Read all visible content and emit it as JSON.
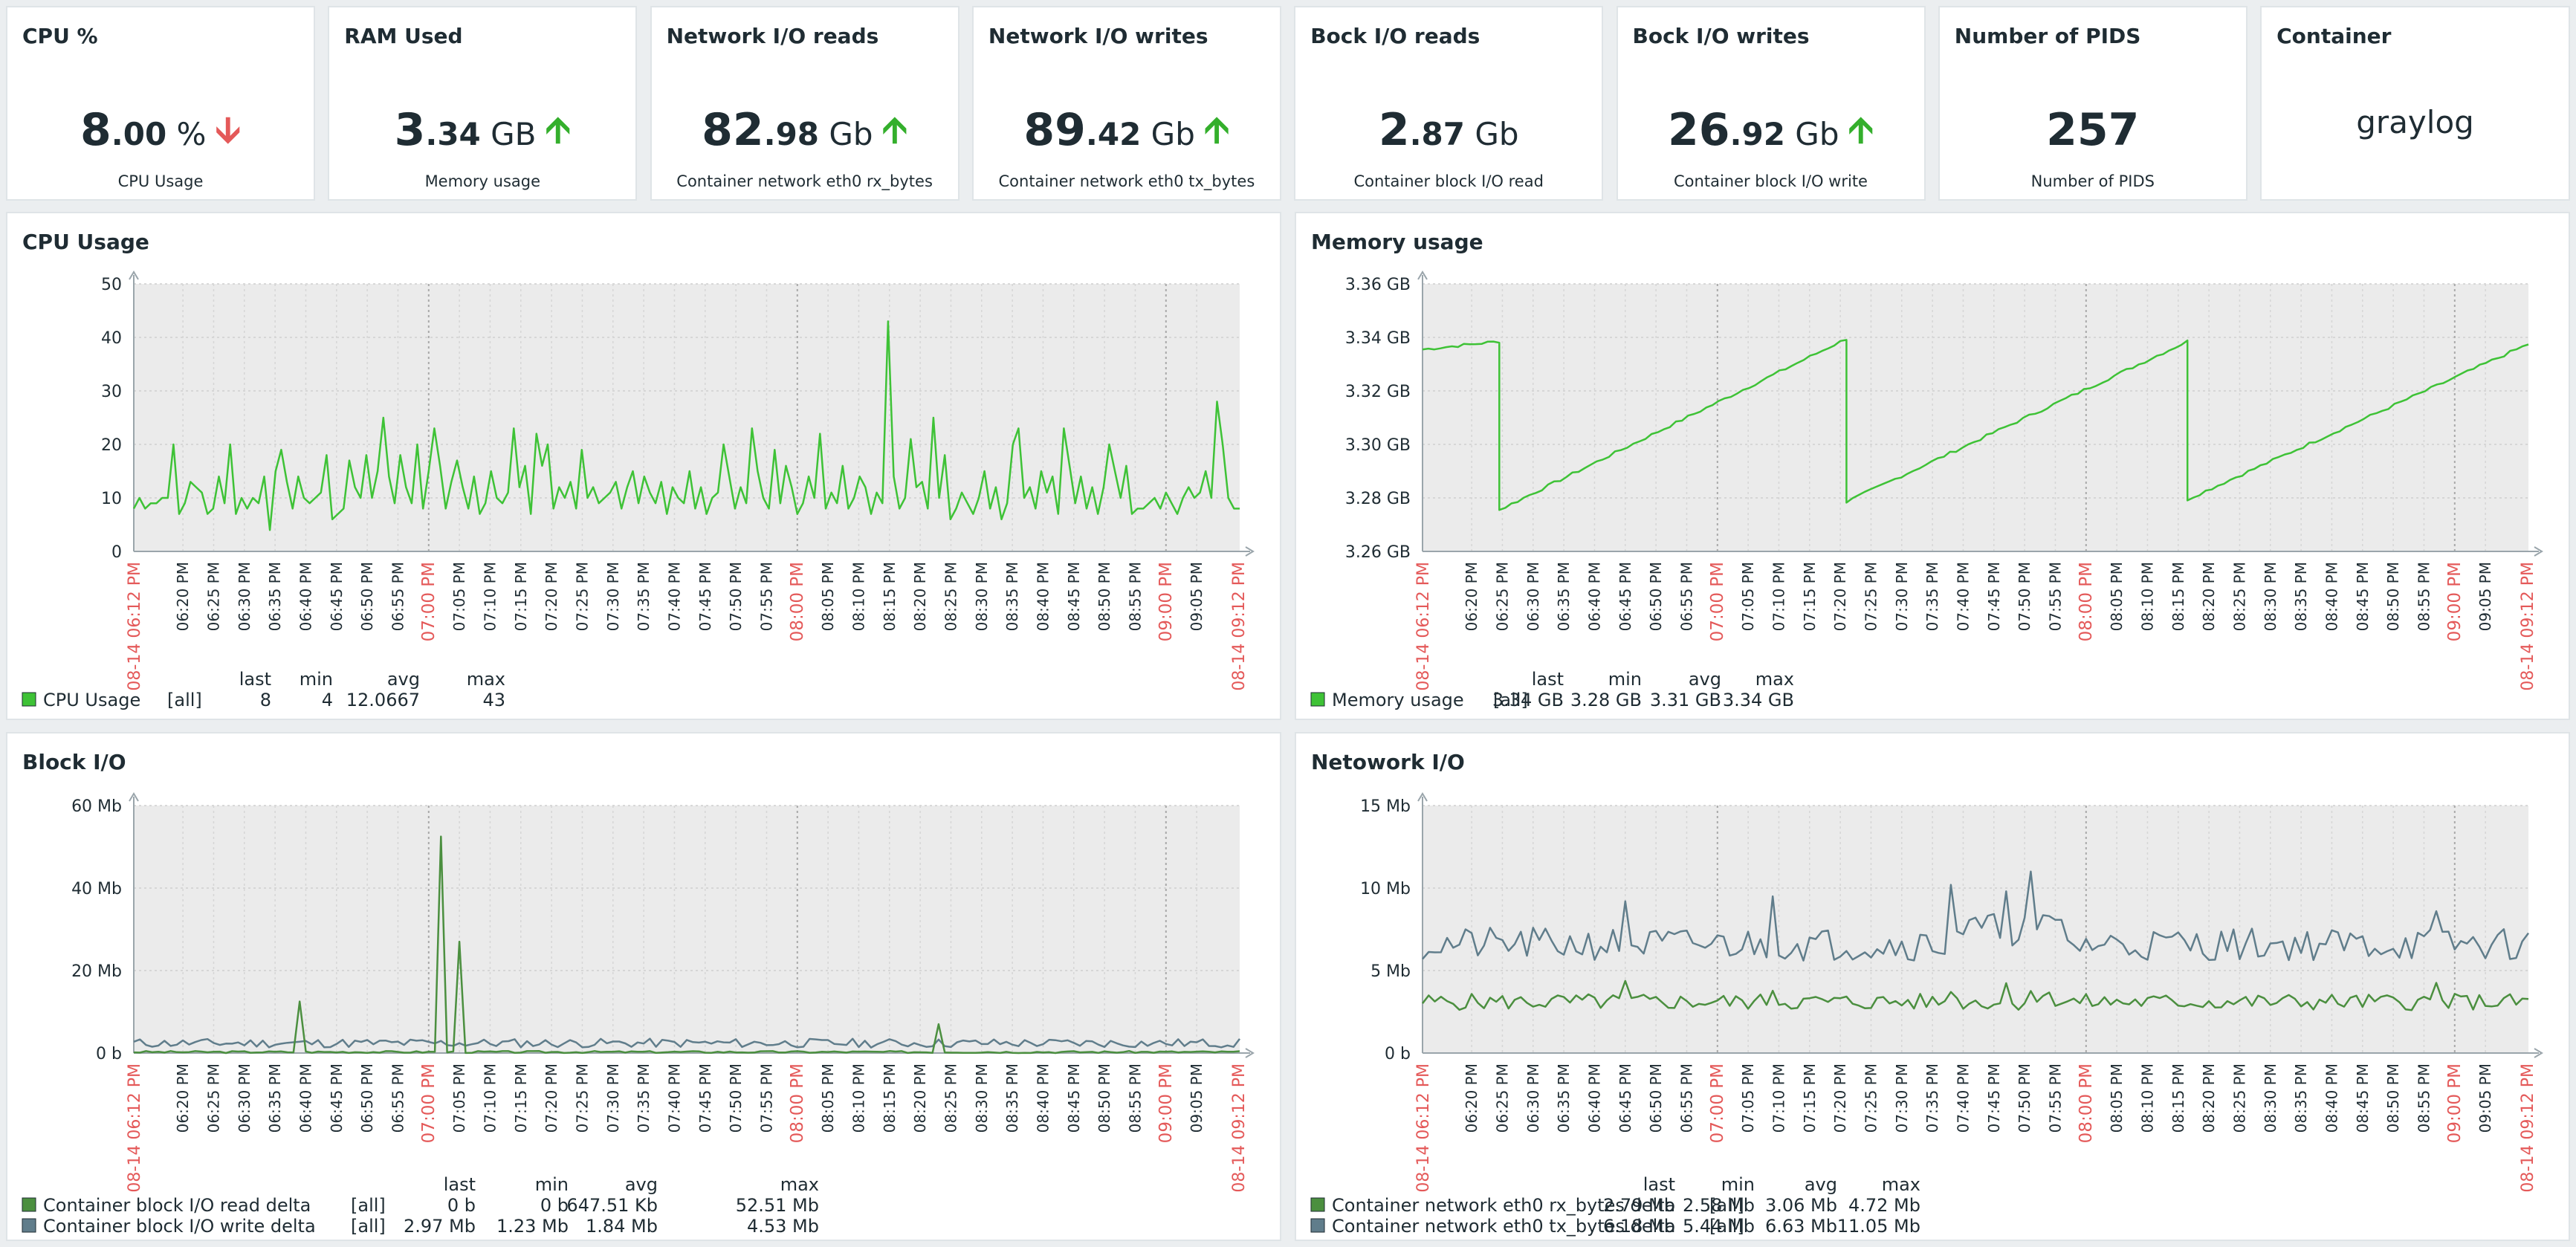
{
  "widgets": [
    {
      "title": "CPU %",
      "big": "8",
      "dec": ".00",
      "unit": " %",
      "arrow": "down",
      "desc": "CPU Usage"
    },
    {
      "title": "RAM Used",
      "big": "3",
      "dec": ".34",
      "unit": " GB",
      "arrow": "up",
      "desc": "Memory usage"
    },
    {
      "title": "Network I/O reads",
      "big": "82",
      "dec": ".98",
      "unit": " Gb",
      "arrow": "up",
      "desc": "Container network eth0 rx_bytes"
    },
    {
      "title": "Network I/O writes",
      "big": "89",
      "dec": ".42",
      "unit": " Gb",
      "arrow": "up",
      "desc": "Container network eth0 tx_bytes"
    },
    {
      "title": "Bock I/O reads",
      "big": "2",
      "dec": ".87",
      "unit": " Gb",
      "arrow": "",
      "desc": "Container block I/O read"
    },
    {
      "title": "Bock I/O writes",
      "big": "26",
      "dec": ".92",
      "unit": " Gb",
      "arrow": "up",
      "desc": "Container block I/O write"
    },
    {
      "title": "Number of PIDS",
      "big": "257",
      "dec": "",
      "unit": "",
      "arrow": "",
      "desc": "Number of PIDS"
    },
    {
      "title": "Container",
      "plain": "graylog",
      "desc": ""
    }
  ],
  "colors": {
    "green": "#3ec236",
    "dark_green": "#4b8f3f",
    "slate": "#607d8b",
    "red_label": "#e45959",
    "arrow_up": "#34af2c",
    "arrow_down": "#e45959"
  },
  "time_axis": {
    "start_label": "08-14 06:12 PM",
    "end_label": "08-14 09:12 PM",
    "tick_labels": [
      "06:20 PM",
      "06:25 PM",
      "06:30 PM",
      "06:35 PM",
      "06:40 PM",
      "06:45 PM",
      "06:50 PM",
      "06:55 PM",
      "07:00 PM",
      "07:05 PM",
      "07:10 PM",
      "07:15 PM",
      "07:20 PM",
      "07:25 PM",
      "07:30 PM",
      "07:35 PM",
      "07:40 PM",
      "07:45 PM",
      "07:50 PM",
      "07:55 PM",
      "08:00 PM",
      "08:05 PM",
      "08:10 PM",
      "08:15 PM",
      "08:20 PM",
      "08:25 PM",
      "08:30 PM",
      "08:35 PM",
      "08:40 PM",
      "08:45 PM",
      "08:50 PM",
      "08:55 PM",
      "09:00 PM",
      "09:05 PM"
    ],
    "hour_marks": [
      "07:00 PM",
      "08:00 PM",
      "09:00 PM"
    ]
  },
  "chart_data": [
    {
      "type": "line",
      "title": "CPU Usage",
      "y_ticks": [
        "0",
        "10",
        "20",
        "30",
        "40",
        "50"
      ],
      "ylim": [
        0,
        50
      ],
      "legend_headers": [
        "last",
        "min",
        "avg",
        "max"
      ],
      "series": [
        {
          "name": "CPU Usage",
          "agg": "[all]",
          "color": "#3ec236",
          "stats": [
            "8",
            "4",
            "12.0667",
            "43"
          ],
          "values": [
            8,
            10,
            8,
            9,
            9,
            10,
            10,
            20,
            7,
            9,
            13,
            12,
            11,
            7,
            8,
            14,
            9,
            20,
            7,
            10,
            8,
            10,
            9,
            14,
            4,
            15,
            19,
            13,
            8,
            14,
            10,
            9,
            10,
            11,
            18,
            6,
            7,
            8,
            17,
            12,
            10,
            18,
            10,
            15,
            25,
            14,
            9,
            18,
            12,
            9,
            20,
            8,
            15,
            23,
            16,
            8,
            13,
            17,
            12,
            8,
            14,
            7,
            9,
            15,
            10,
            9,
            11,
            23,
            12,
            16,
            7,
            22,
            16,
            20,
            8,
            12,
            10,
            13,
            8,
            19,
            10,
            12,
            9,
            10,
            11,
            13,
            8,
            12,
            15,
            9,
            14,
            11,
            9,
            13,
            7,
            12,
            10,
            9,
            15,
            8,
            12,
            7,
            10,
            11,
            20,
            14,
            8,
            12,
            9,
            23,
            15,
            10,
            8,
            19,
            9,
            16,
            12,
            7,
            9,
            14,
            10,
            22,
            8,
            11,
            9,
            16,
            8,
            10,
            14,
            12,
            7,
            11,
            9,
            43,
            14,
            8,
            10,
            21,
            12,
            13,
            8,
            25,
            10,
            18,
            6,
            8,
            11,
            9,
            7,
            10,
            15,
            8,
            12,
            6,
            9,
            20,
            23,
            10,
            12,
            8,
            15,
            11,
            14,
            7,
            23,
            16,
            9,
            14,
            8,
            12,
            7,
            12,
            20,
            15,
            10,
            16,
            7,
            8,
            8,
            9,
            10,
            8,
            11,
            9,
            7,
            10,
            12,
            10,
            11,
            15,
            10,
            28,
            20,
            10,
            8,
            8
          ]
        }
      ]
    },
    {
      "type": "line",
      "title": "Memory usage",
      "y_ticks": [
        "3.26 GB",
        "3.28 GB",
        "3.30 GB",
        "3.32 GB",
        "3.34 GB",
        "3.36 GB"
      ],
      "ylim": [
        3.26,
        3.36
      ],
      "legend_headers": [
        "last",
        "min",
        "avg",
        "max"
      ],
      "series": [
        {
          "name": "Memory usage",
          "agg": "[all]",
          "color": "#3ec236",
          "stats": [
            "3.34 GB",
            "3.28 GB",
            "3.31 GB",
            "3.34 GB"
          ],
          "segments": [
            {
              "from": 0,
              "to": 12.5,
              "y0": 3.3355,
              "y1": 3.3385
            },
            {
              "from": 12.5,
              "to": 12.5,
              "y0": 3.3385,
              "y1": 3.2755
            },
            {
              "from": 12.5,
              "to": 69,
              "y0": 3.2755,
              "y1": 3.3395
            },
            {
              "from": 69,
              "to": 69,
              "y0": 3.3395,
              "y1": 3.2785
            },
            {
              "from": 69,
              "to": 124.5,
              "y0": 3.2785,
              "y1": 3.3385
            },
            {
              "from": 124.5,
              "to": 124.5,
              "y0": 3.3385,
              "y1": 3.2795
            },
            {
              "from": 124.5,
              "to": 180,
              "y0": 3.2795,
              "y1": 3.3375
            }
          ]
        }
      ]
    },
    {
      "type": "line",
      "title": "Block I/O",
      "y_ticks": [
        "0 b",
        "20 Mb",
        "40 Mb",
        "60 Mb"
      ],
      "ylim": [
        0,
        60
      ],
      "legend_headers": [
        "last",
        "min",
        "avg",
        "max"
      ],
      "series": [
        {
          "name": "Container block I/O read delta",
          "agg": "[all]",
          "color": "#4b8f3f",
          "stats": [
            "0 b",
            "0 b",
            "647.51 Kb",
            "52.51 Mb"
          ],
          "spikes": [
            {
              "t": 27,
              "v": 12.5
            },
            {
              "t": 50,
              "v": 52.5
            },
            {
              "t": 53,
              "v": 27
            },
            {
              "t": 131,
              "v": 7
            }
          ]
        },
        {
          "name": "Container block I/O write delta",
          "agg": "[all]",
          "color": "#607d8b",
          "stats": [
            "2.97 Mb",
            "1.23 Mb",
            "1.84 Mb",
            "4.53 Mb"
          ]
        }
      ]
    },
    {
      "type": "line",
      "title": "Netowork I/O",
      "y_ticks": [
        "0 b",
        "5 Mb",
        "10 Mb",
        "15 Mb"
      ],
      "ylim": [
        0,
        15
      ],
      "legend_headers": [
        "last",
        "min",
        "avg",
        "max"
      ],
      "series": [
        {
          "name": "Container network eth0 rx_bytes delta",
          "agg": "[all]",
          "color": "#4b8f3f",
          "stats": [
            "2.79 Mb",
            "2.58 Mb",
            "3.06 Mb",
            "4.72 Mb"
          ]
        },
        {
          "name": "Container network eth0 tx_bytes delta",
          "agg": "[all]",
          "color": "#607d8b",
          "stats": [
            "6.18 Mb",
            "5.44 Mb",
            "6.63 Mb",
            "11.05 Mb"
          ],
          "spikes": [
            {
              "t": 33,
              "v": 9.2
            },
            {
              "t": 57,
              "v": 9.5
            },
            {
              "t": 86,
              "v": 10.2
            },
            {
              "t": 95,
              "v": 9.8
            },
            {
              "t": 99,
              "v": 11
            },
            {
              "t": 102,
              "v": 8.3
            },
            {
              "t": 165,
              "v": 8.6
            }
          ]
        }
      ]
    }
  ]
}
